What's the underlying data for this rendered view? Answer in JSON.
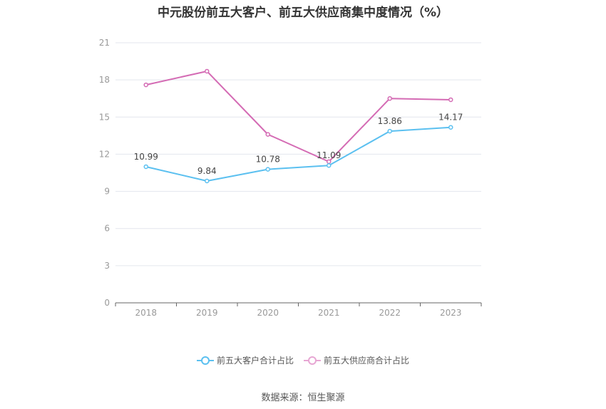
{
  "chart_data": {
    "type": "line",
    "title": "中元股份前五大客户、前五大供应商集中度情况（%）",
    "categories": [
      "2018",
      "2019",
      "2020",
      "2021",
      "2022",
      "2023"
    ],
    "ylim": [
      0,
      21
    ],
    "yticks": [
      0,
      3,
      6,
      9,
      12,
      15,
      18,
      21
    ],
    "grid": true,
    "legend_position": "bottom",
    "series": [
      {
        "name": "前五大客户合计占比",
        "color": "#5bc0f0",
        "values": [
          10.99,
          9.84,
          10.78,
          11.09,
          13.86,
          14.17
        ],
        "labels": [
          "10.99",
          "9.84",
          "10.78",
          "11.09",
          "13.86",
          "14.17"
        ]
      },
      {
        "name": "前五大供应商合计占比",
        "color": "#d46bb4",
        "values": [
          17.6,
          18.7,
          13.6,
          11.4,
          16.5,
          16.4
        ]
      }
    ]
  },
  "source": "数据来源：恒生聚源"
}
